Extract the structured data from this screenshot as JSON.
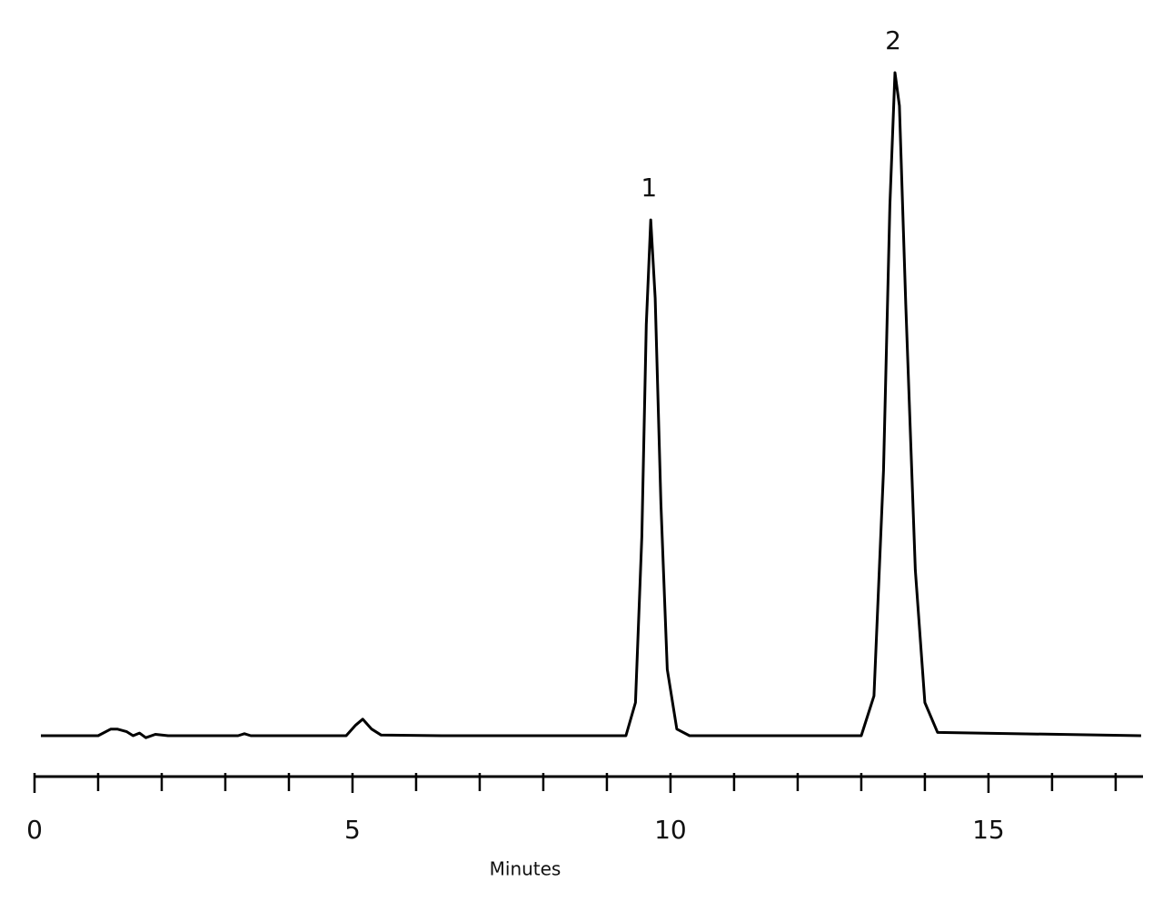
{
  "chart_data": {
    "type": "line",
    "x_label": "Minutes",
    "xlim": [
      0,
      17.43
    ],
    "xticks": [
      0,
      5,
      10,
      15
    ],
    "xminorticks": [
      1,
      2,
      3,
      4,
      6,
      7,
      8,
      9,
      11,
      12,
      13,
      14,
      16,
      17
    ],
    "ylim": [
      0,
      100
    ],
    "grid": false,
    "series": [
      {
        "color": "#000000",
        "x": [
          0.1,
          1.0,
          1.2,
          1.3,
          1.45,
          1.55,
          1.65,
          1.75,
          1.9,
          2.1,
          3.2,
          3.3,
          3.4,
          4.9,
          5.05,
          5.16,
          5.3,
          5.45,
          6.4,
          9.3,
          9.45,
          9.55,
          9.62,
          9.69,
          9.76,
          9.85,
          9.95,
          10.1,
          10.3,
          13.0,
          13.2,
          13.35,
          13.45,
          13.53,
          13.6,
          13.7,
          13.85,
          14.0,
          14.2,
          17.4
        ],
        "values": [
          0,
          0,
          1.0,
          1.0,
          0.6,
          0.0,
          0.4,
          -0.3,
          0.2,
          0,
          0,
          0.3,
          0,
          0,
          1.6,
          2.5,
          1.0,
          0.1,
          0,
          0,
          5,
          30,
          62,
          77.8,
          66,
          35,
          10,
          1,
          0,
          0,
          6,
          40,
          80,
          100,
          95,
          65,
          25,
          5,
          0.5,
          0
        ]
      }
    ],
    "annotations": [
      {
        "text": "1",
        "x": 9.69
      },
      {
        "text": "2",
        "x": 13.53
      }
    ]
  }
}
